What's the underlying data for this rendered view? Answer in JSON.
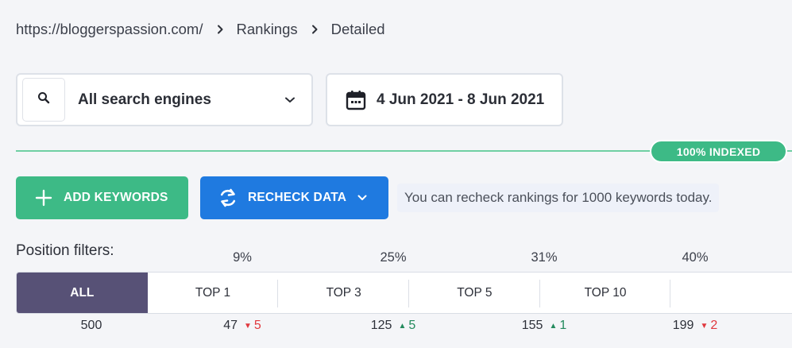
{
  "breadcrumb": {
    "site": "https://bloggerspassion.com/",
    "section": "Rankings",
    "page": "Detailed"
  },
  "engine_select": {
    "label": "All search engines",
    "icon": "search-icon"
  },
  "date_select": {
    "label": "4 Jun 2021 - 8 Jun 2021",
    "icon": "calendar-icon"
  },
  "indexed_badge": "100% INDEXED",
  "buttons": {
    "add_keywords": "ADD KEYWORDS",
    "recheck_data": "RECHECK DATA"
  },
  "recheck_note": "You can recheck rankings for 1000 keywords today.",
  "position_filters": {
    "title": "Position filters:",
    "tabs": [
      {
        "label": "ALL",
        "percent": "",
        "count": "500",
        "delta": "",
        "direction": ""
      },
      {
        "label": "TOP 1",
        "percent": "9%",
        "count": "47",
        "delta": "5",
        "direction": "down"
      },
      {
        "label": "TOP 3",
        "percent": "25%",
        "count": "125",
        "delta": "5",
        "direction": "up"
      },
      {
        "label": "TOP 5",
        "percent": "31%",
        "count": "155",
        "delta": "1",
        "direction": "up"
      },
      {
        "label": "TOP 10",
        "percent": "40%",
        "count": "199",
        "delta": "2",
        "direction": "down"
      }
    ]
  },
  "colors": {
    "green": "#3dba86",
    "blue": "#1f7ae0",
    "purple": "#575176",
    "up": "#238a5d",
    "down": "#e0383e"
  }
}
